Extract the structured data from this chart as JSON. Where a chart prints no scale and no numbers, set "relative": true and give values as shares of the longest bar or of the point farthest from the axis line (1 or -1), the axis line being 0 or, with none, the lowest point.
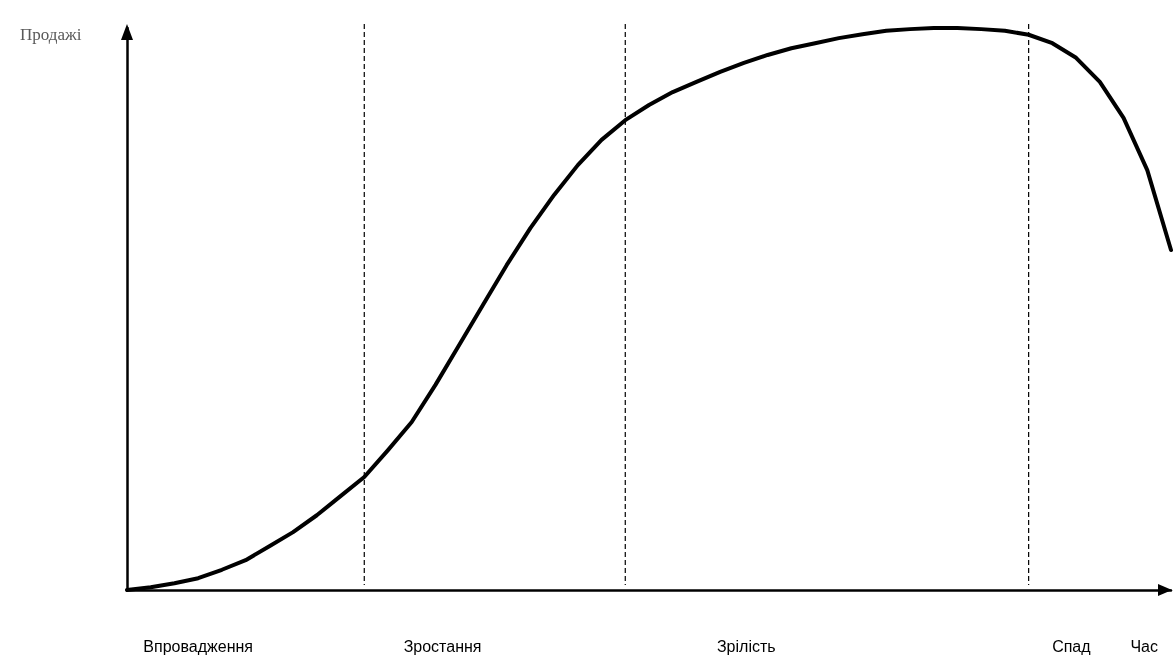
{
  "chart_data": {
    "type": "line",
    "relative": true,
    "xlabel": "Час",
    "ylabel": "Продажі",
    "categories": [
      null,
      null,
      null,
      null,
      null,
      null,
      null,
      null,
      null,
      null,
      null,
      null,
      null,
      null,
      null,
      null,
      null,
      null,
      null,
      null,
      null,
      null,
      null,
      null,
      null,
      null,
      null,
      null,
      null,
      null,
      null,
      null,
      null,
      null,
      null,
      null,
      null,
      null,
      null,
      null,
      null,
      null,
      null,
      null,
      null
    ],
    "series": [
      {
        "color": "#000000",
        "values": [
          0,
          0.005,
          0.012,
          0.021,
          0.036,
          0.053,
          0.078,
          0.103,
          0.133,
          0.167,
          0.201,
          0.249,
          0.299,
          0.365,
          0.436,
          0.507,
          0.578,
          0.644,
          0.703,
          0.756,
          0.801,
          0.836,
          0.863,
          0.886,
          0.904,
          0.922,
          0.938,
          0.952,
          0.964,
          0.973,
          0.982,
          0.989,
          0.995,
          0.998,
          1,
          1,
          0.998,
          0.995,
          0.988,
          0.973,
          0.947,
          0.904,
          0.84,
          0.747,
          0.605
        ]
      }
    ],
    "annotations": [
      "Впровадження",
      "Зростання",
      "Зрілість",
      "Спад"
    ],
    "marker": "none",
    "line_style": "solid",
    "grid": "x"
  }
}
